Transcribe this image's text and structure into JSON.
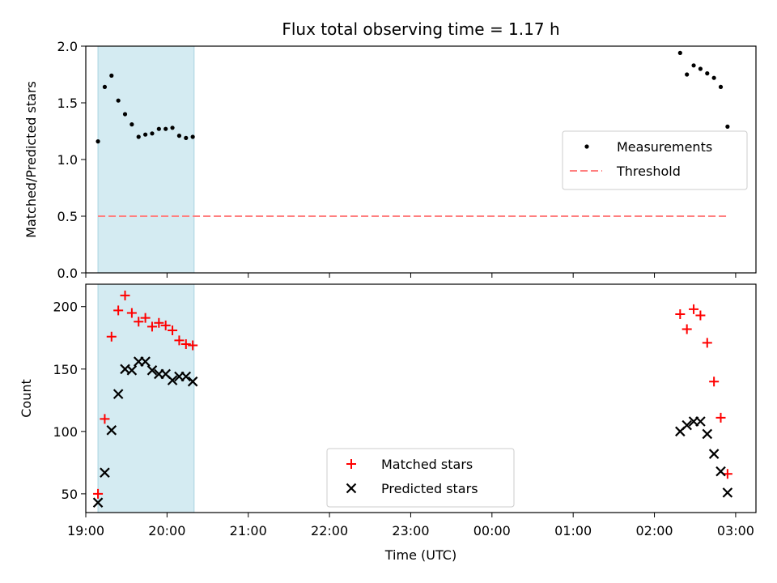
{
  "chart_data": [
    {
      "type": "scatter",
      "title": "Flux total observing time = 1.17 h",
      "xlabel": "",
      "ylabel": "Matched/Predicted stars",
      "ylim": [
        0,
        2.0
      ],
      "yticks": [
        "0.0",
        "0.5",
        "1.0",
        "1.5",
        "2.0"
      ],
      "xlim": [
        "19:00",
        "03:15"
      ],
      "shaded_span": [
        "19:09",
        "20:20"
      ],
      "shade_color": "#d4ebf2",
      "legend_position": "center-right",
      "series": [
        {
          "name": "Measurements",
          "kind": "scatter",
          "color": "#000000",
          "marker": "dot",
          "points": [
            [
              "19:09",
              1.16
            ],
            [
              "19:14",
              1.64
            ],
            [
              "19:19",
              1.74
            ],
            [
              "19:24",
              1.52
            ],
            [
              "19:29",
              1.4
            ],
            [
              "19:34",
              1.31
            ],
            [
              "19:39",
              1.2
            ],
            [
              "19:44",
              1.22
            ],
            [
              "19:49",
              1.23
            ],
            [
              "19:54",
              1.27
            ],
            [
              "19:59",
              1.27
            ],
            [
              "20:04",
              1.28
            ],
            [
              "20:09",
              1.21
            ],
            [
              "20:14",
              1.19
            ],
            [
              "20:19",
              1.2
            ],
            [
              "02:19",
              1.94
            ],
            [
              "02:24",
              1.75
            ],
            [
              "02:29",
              1.83
            ],
            [
              "02:34",
              1.8
            ],
            [
              "02:39",
              1.76
            ],
            [
              "02:44",
              1.72
            ],
            [
              "02:49",
              1.64
            ],
            [
              "02:54",
              1.29
            ]
          ]
        },
        {
          "name": "Threshold",
          "kind": "line",
          "color": "#ff7f7f",
          "dash": "dashed",
          "points": [
            [
              "19:09",
              0.5
            ],
            [
              "02:54",
              0.5
            ]
          ]
        }
      ]
    },
    {
      "type": "scatter",
      "title": "",
      "xlabel": "Time (UTC)",
      "ylabel": "Count",
      "ylim": [
        35,
        218
      ],
      "yticks": [
        "50",
        "100",
        "150",
        "200"
      ],
      "xticks": [
        "19:00",
        "20:00",
        "21:00",
        "22:00",
        "23:00",
        "00:00",
        "01:00",
        "02:00",
        "03:00"
      ],
      "xlim": [
        "19:00",
        "03:15"
      ],
      "shaded_span": [
        "19:09",
        "20:20"
      ],
      "shade_color": "#d4ebf2",
      "legend_position": "bottom-center",
      "series": [
        {
          "name": "Matched stars",
          "kind": "scatter",
          "color": "#ff0000",
          "marker": "plus",
          "points": [
            [
              "19:09",
              50
            ],
            [
              "19:14",
              110
            ],
            [
              "19:19",
              176
            ],
            [
              "19:24",
              197
            ],
            [
              "19:29",
              209
            ],
            [
              "19:34",
              195
            ],
            [
              "19:39",
              188
            ],
            [
              "19:44",
              191
            ],
            [
              "19:49",
              184
            ],
            [
              "19:54",
              187
            ],
            [
              "19:59",
              185
            ],
            [
              "20:04",
              181
            ],
            [
              "20:09",
              173
            ],
            [
              "20:14",
              170
            ],
            [
              "20:19",
              169
            ],
            [
              "02:19",
              194
            ],
            [
              "02:24",
              182
            ],
            [
              "02:29",
              198
            ],
            [
              "02:34",
              193
            ],
            [
              "02:39",
              171
            ],
            [
              "02:44",
              140
            ],
            [
              "02:49",
              111
            ],
            [
              "02:54",
              66
            ]
          ]
        },
        {
          "name": "Predicted stars",
          "kind": "scatter",
          "color": "#000000",
          "marker": "x",
          "points": [
            [
              "19:09",
              43
            ],
            [
              "19:14",
              67
            ],
            [
              "19:19",
              101
            ],
            [
              "19:24",
              130
            ],
            [
              "19:29",
              150
            ],
            [
              "19:34",
              149
            ],
            [
              "19:39",
              156
            ],
            [
              "19:44",
              156
            ],
            [
              "19:49",
              149
            ],
            [
              "19:54",
              146
            ],
            [
              "19:59",
              146
            ],
            [
              "20:04",
              141
            ],
            [
              "20:09",
              144
            ],
            [
              "20:14",
              144
            ],
            [
              "20:19",
              140
            ],
            [
              "02:19",
              100
            ],
            [
              "02:24",
              105
            ],
            [
              "02:29",
              108
            ],
            [
              "02:34",
              108
            ],
            [
              "02:39",
              98
            ],
            [
              "02:44",
              82
            ],
            [
              "02:49",
              68
            ],
            [
              "02:54",
              51
            ]
          ]
        }
      ]
    }
  ]
}
